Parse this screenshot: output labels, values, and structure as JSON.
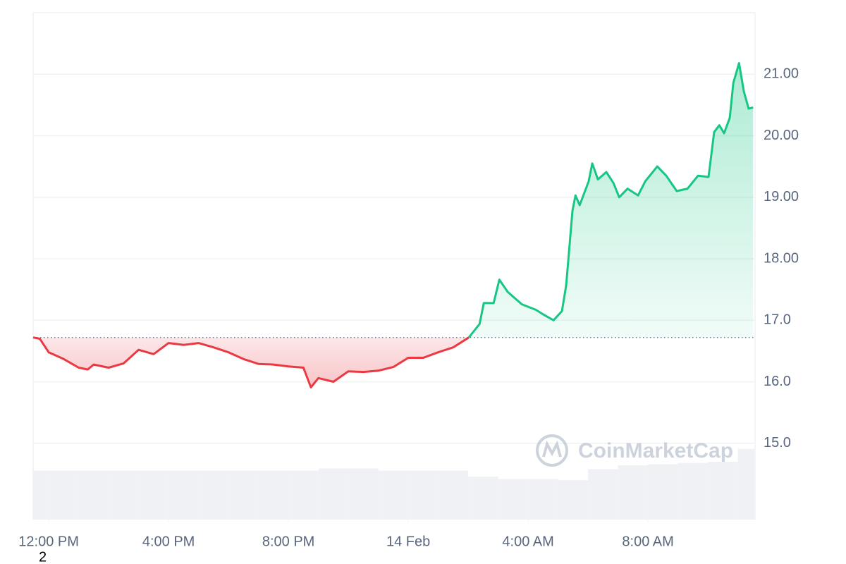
{
  "chart_data": {
    "type": "line",
    "x": [
      -0.52,
      -0.3,
      0,
      0.5,
      1,
      1.3,
      1.5,
      2,
      2.5,
      3,
      3.5,
      4,
      4.5,
      5,
      5.5,
      6,
      6.5,
      7,
      7.5,
      8,
      8.5,
      8.75,
      9,
      9.5,
      10,
      10.5,
      11,
      11.5,
      12,
      12.5,
      13,
      13.5,
      14.02,
      14.38,
      14.52,
      14.85,
      15.04,
      15.32,
      15.79,
      16.26,
      16.49,
      16.85,
      17.13,
      17.27,
      17.39,
      17.48,
      17.58,
      17.72,
      18.02,
      18.14,
      18.33,
      18.61,
      18.85,
      19.04,
      19.32,
      19.67,
      19.91,
      20.31,
      20.61,
      20.96,
      21.32,
      21.67,
      22.02,
      22.21,
      22.38,
      22.54,
      22.73,
      22.85,
      23.04,
      23.2,
      23.36,
      23.51
    ],
    "series": [
      {
        "values": [
          16.72,
          16.7,
          16.48,
          16.37,
          16.23,
          16.2,
          16.28,
          16.23,
          16.3,
          16.52,
          16.45,
          16.63,
          16.6,
          16.63,
          16.56,
          16.48,
          16.37,
          16.29,
          16.28,
          16.25,
          16.23,
          15.91,
          16.06,
          16.0,
          16.17,
          16.16,
          16.18,
          16.24,
          16.39,
          16.39,
          16.48,
          16.56,
          16.72,
          16.94,
          17.28,
          17.28,
          17.66,
          17.46,
          17.26,
          17.17,
          17.1,
          17.0,
          17.15,
          17.57,
          18.26,
          18.78,
          19.03,
          18.87,
          19.26,
          19.55,
          19.29,
          19.41,
          19.23,
          19.0,
          19.14,
          19.03,
          19.26,
          19.5,
          19.35,
          19.1,
          19.14,
          19.35,
          19.33,
          20.06,
          20.17,
          20.04,
          20.29,
          20.86,
          21.18,
          20.72,
          20.44,
          20.46
        ]
      }
    ],
    "up_color": "#16c784",
    "down_color": "#ea3943",
    "baseline": 16.72,
    "volume": {
      "color": "#eff1f4",
      "x": [
        -0.5,
        0.5,
        1.5,
        2.5,
        3.5,
        4.5,
        5.5,
        6.5,
        7.5,
        8.5,
        9.5,
        10.5,
        11.5,
        12.5,
        13.5,
        14.5,
        15.5,
        16.5,
        17.5,
        18.5,
        19.5,
        20.5,
        21.5,
        22.5,
        23.5
      ],
      "values": [
        14.555,
        14.555,
        14.555,
        14.555,
        14.555,
        14.555,
        14.555,
        14.555,
        14.555,
        14.555,
        14.59,
        14.59,
        14.555,
        14.555,
        14.555,
        14.46,
        14.42,
        14.42,
        14.4,
        14.58,
        14.64,
        14.66,
        14.68,
        14.7,
        14.91
      ]
    },
    "xlim": [
      -0.52,
      23.55
    ],
    "xticks": [
      {
        "value": 0,
        "label": "12:00 PM"
      },
      {
        "value": 4,
        "label": "4:00 PM"
      },
      {
        "value": 8,
        "label": "8:00 PM"
      },
      {
        "value": 12,
        "label": "14 Feb"
      },
      {
        "value": 16,
        "label": "4:00 AM"
      },
      {
        "value": 20,
        "label": "8:00 AM"
      }
    ],
    "ylim": [
      13.76,
      22.0
    ],
    "yticks": [
      {
        "value": 15,
        "label": "15.0"
      },
      {
        "value": 16,
        "label": "16.0"
      },
      {
        "value": 17,
        "label": "17.0"
      },
      {
        "value": 18,
        "label": "18.00"
      },
      {
        "value": 19,
        "label": "19.00"
      },
      {
        "value": 20,
        "label": "20.00"
      },
      {
        "value": 21,
        "label": "21.00"
      }
    ],
    "grid": true,
    "watermark": "CoinMarketCap",
    "note": "2"
  }
}
